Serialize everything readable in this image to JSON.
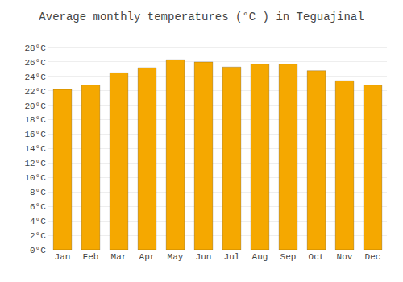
{
  "chart_data": {
    "type": "bar",
    "title": "Average monthly temperatures (°C ) in Teguajinal",
    "categories": [
      "Jan",
      "Feb",
      "Mar",
      "Apr",
      "May",
      "Jun",
      "Jul",
      "Aug",
      "Sep",
      "Oct",
      "Nov",
      "Dec"
    ],
    "values": [
      22.2,
      22.8,
      24.5,
      25.2,
      26.3,
      26.0,
      25.3,
      25.7,
      25.7,
      24.8,
      23.4,
      22.8
    ],
    "color": "#F5A800",
    "ylim": [
      0,
      29
    ],
    "yticks": [
      {
        "value": 0,
        "label": "0°C"
      },
      {
        "value": 2,
        "label": "2°C"
      },
      {
        "value": 4,
        "label": "4°C"
      },
      {
        "value": 6,
        "label": "6°C"
      },
      {
        "value": 8,
        "label": "8°C"
      },
      {
        "value": 10,
        "label": "10°C"
      },
      {
        "value": 12,
        "label": "12°C"
      },
      {
        "value": 14,
        "label": "14°C"
      },
      {
        "value": 16,
        "label": "16°C"
      },
      {
        "value": 18,
        "label": "18°C"
      },
      {
        "value": 20,
        "label": "20°C"
      },
      {
        "value": 22,
        "label": "22°C"
      },
      {
        "value": 24,
        "label": "24°C"
      },
      {
        "value": 26,
        "label": "26°C"
      },
      {
        "value": 28,
        "label": "28°C"
      }
    ],
    "grid": true
  }
}
